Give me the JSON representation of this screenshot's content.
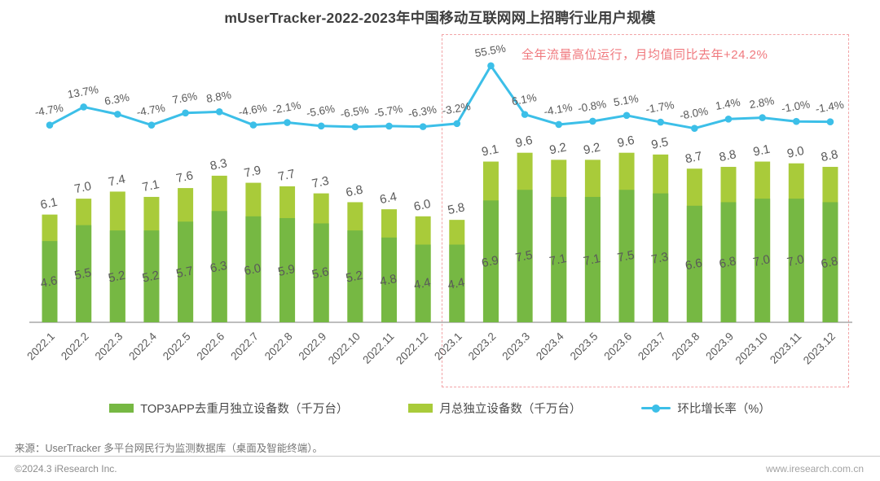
{
  "title": "mUserTracker-2022-2023年中国移动互联网网上招聘行业用户规模",
  "highlight": {
    "text": "全年流量高位运行，月均值同比去年+24.2%",
    "border_color": "#f2a4a7",
    "text_color": "#f0797e"
  },
  "chart_data": {
    "type": "bar",
    "subtype": "stacked-bar-with-line-combo",
    "categories": [
      "2022.1",
      "2022.2",
      "2022.3",
      "2022.4",
      "2022.5",
      "2022.6",
      "2022.7",
      "2022.8",
      "2022.9",
      "2022.10",
      "2022.11",
      "2022.12",
      "2023.1",
      "2023.2",
      "2023.3",
      "2023.4",
      "2023.5",
      "2023.6",
      "2023.7",
      "2023.8",
      "2023.9",
      "2023.10",
      "2023.11",
      "2023.12"
    ],
    "series": [
      {
        "name": "TOP3APP去重月独立设备数（千万台）",
        "kind": "bar",
        "color": "#76b843",
        "values": [
          4.6,
          5.5,
          5.2,
          5.2,
          5.7,
          6.3,
          6.0,
          5.9,
          5.6,
          5.2,
          4.8,
          4.4,
          4.4,
          6.9,
          7.5,
          7.1,
          7.1,
          7.5,
          7.3,
          6.6,
          6.8,
          7.0,
          7.0,
          6.8
        ]
      },
      {
        "name": "月总独立设备数（千万台）",
        "kind": "bar",
        "color": "#a9cb3a",
        "values": [
          6.1,
          7.0,
          7.4,
          7.1,
          7.6,
          8.3,
          7.9,
          7.7,
          7.3,
          6.8,
          6.4,
          6.0,
          5.8,
          9.1,
          9.6,
          9.2,
          9.2,
          9.6,
          9.5,
          8.7,
          8.8,
          9.1,
          9.0,
          8.8
        ]
      },
      {
        "name": "环比增长率（%）",
        "kind": "line",
        "color": "#3cbfe8",
        "values": [
          -4.7,
          13.7,
          6.3,
          -4.7,
          7.6,
          8.8,
          -4.6,
          -2.1,
          -5.6,
          -6.5,
          -5.7,
          -6.3,
          -3.2,
          55.5,
          6.1,
          -4.1,
          -0.8,
          5.1,
          -1.7,
          -8.0,
          1.4,
          2.8,
          -1.0,
          -1.4
        ]
      }
    ],
    "grid": false,
    "legend_position": "bottom",
    "highlight_region": {
      "from": "2023.1",
      "to": "2023.12",
      "label": "全年流量高位运行，月均值同比去年+24.2%"
    }
  },
  "footer": {
    "source": "来源：UserTracker 多平台网民行为监测数据库（桌面及智能终端）。",
    "copyright": "©2024.3 iResearch Inc.",
    "website": "www.iresearch.com.cn"
  }
}
